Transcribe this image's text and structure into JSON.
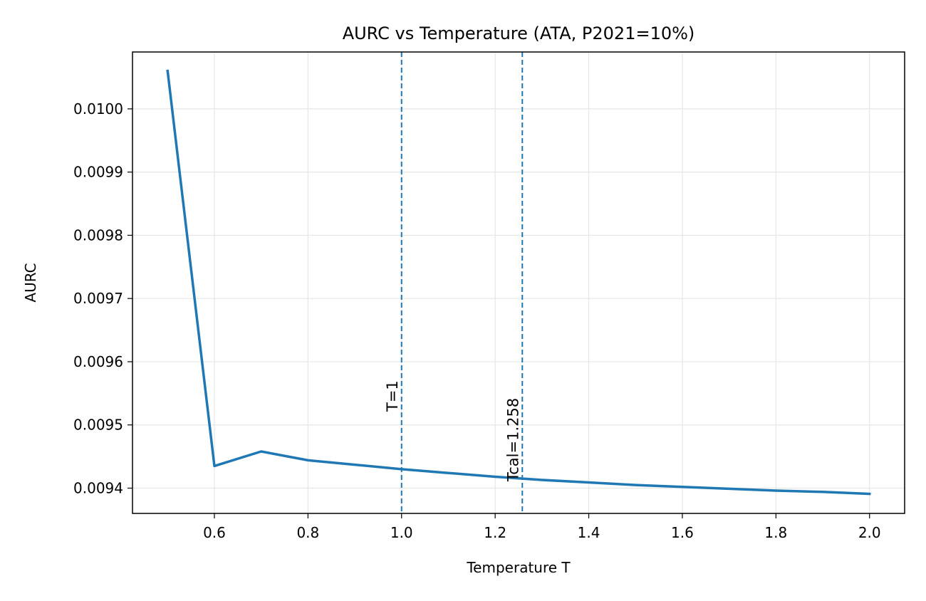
{
  "chart_data": {
    "type": "line",
    "title": "AURC vs Temperature (ATA, P2021=10%)",
    "xlabel": "Temperature T",
    "ylabel": "AURC",
    "xlim": [
      0.425,
      2.075
    ],
    "ylim": [
      0.00936,
      0.01009
    ],
    "xticks": [
      0.6,
      0.8,
      1.0,
      1.2,
      1.4,
      1.6,
      1.8,
      2.0
    ],
    "xtick_labels": [
      "0.6",
      "0.8",
      "1.0",
      "1.2",
      "1.4",
      "1.6",
      "1.8",
      "2.0"
    ],
    "yticks": [
      0.0094,
      0.0095,
      0.0096,
      0.0097,
      0.0098,
      0.0099,
      0.01
    ],
    "ytick_labels": [
      "0.0094",
      "0.0095",
      "0.0096",
      "0.0097",
      "0.0098",
      "0.0099",
      "0.0100"
    ],
    "grid": true,
    "colors": {
      "line": "#1f77b4",
      "vline": "#1f77b4",
      "grid": "#e6e6e6"
    },
    "series": [
      {
        "x": [
          0.5,
          0.6,
          0.7,
          0.8,
          0.9,
          1.0,
          1.1,
          1.2,
          1.3,
          1.4,
          1.5,
          1.6,
          1.7,
          1.8,
          1.9,
          2.0
        ],
        "y": [
          0.01006,
          0.009435,
          0.009458,
          0.009444,
          0.009437,
          0.00943,
          0.009424,
          0.009418,
          0.009413,
          0.009409,
          0.009405,
          0.009402,
          0.009399,
          0.009396,
          0.009394,
          0.009391
        ]
      }
    ],
    "vlines": [
      {
        "x": 1.0,
        "label": "T=1"
      },
      {
        "x": 1.258,
        "label": "Tcal=1.258"
      }
    ]
  }
}
